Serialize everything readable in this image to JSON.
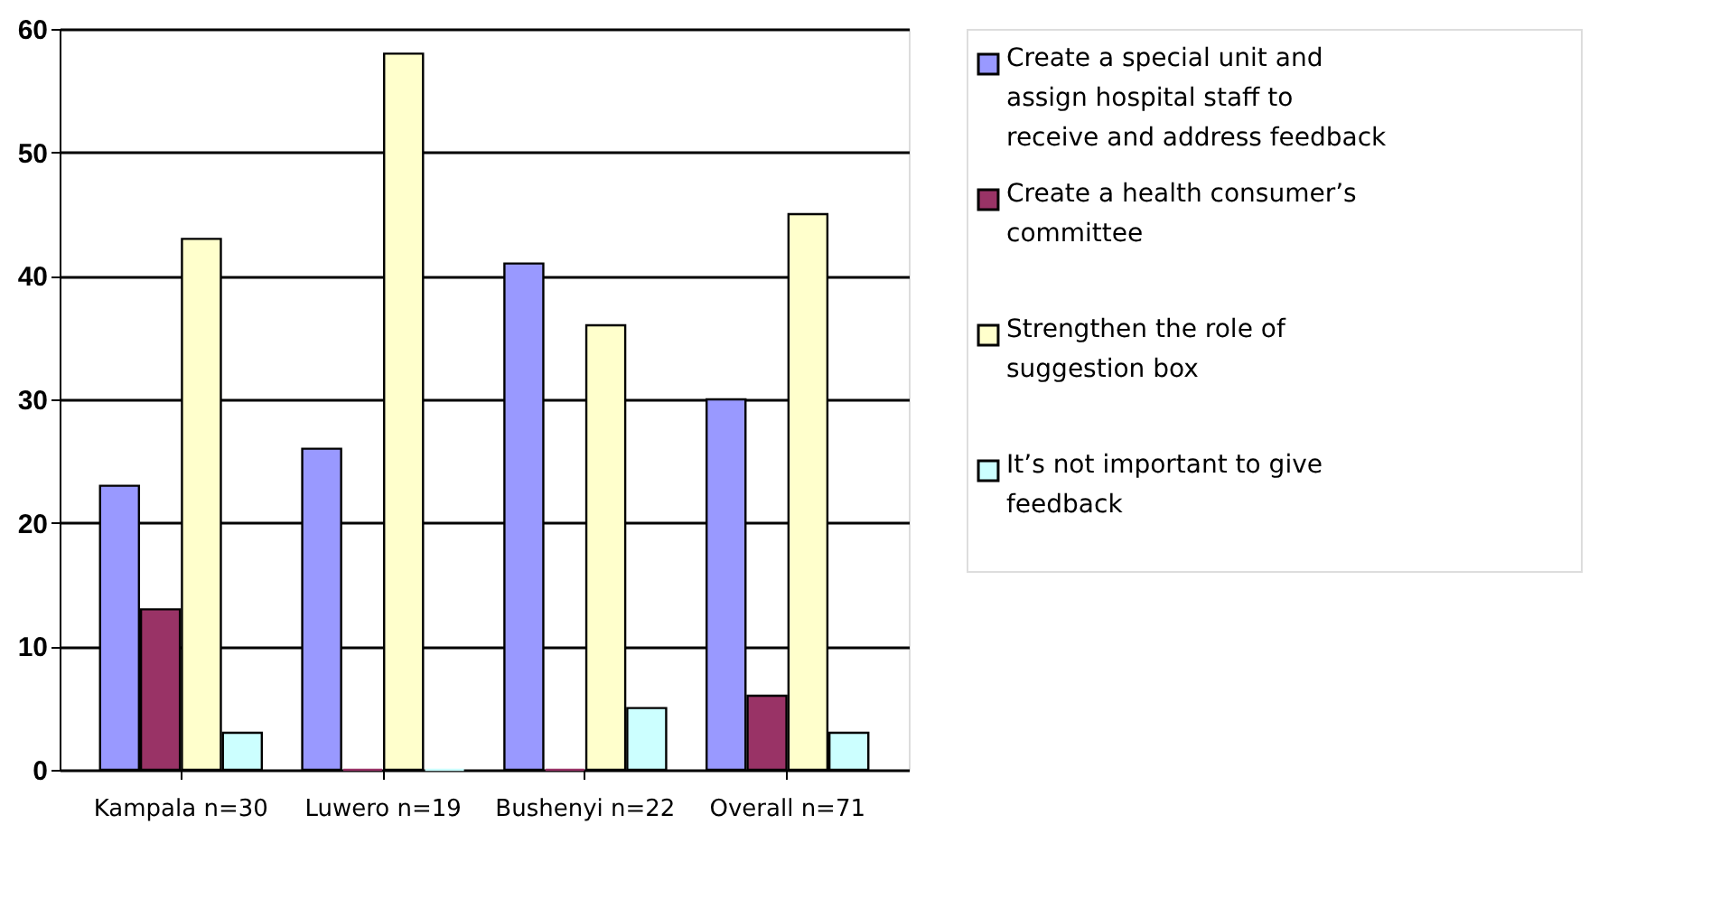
{
  "chart_data": {
    "type": "bar",
    "categories": [
      "Kampala n=30",
      "Luwero n=19",
      "Bushenyi n=22",
      "Overall n=71"
    ],
    "series": [
      {
        "name": "Create a special unit and assign hospital staff to receive and address feedback",
        "color": "#9999ff",
        "values": [
          23,
          26,
          41,
          30
        ]
      },
      {
        "name": "Create a health consumer’s committee",
        "color": "#993366",
        "values": [
          13,
          0,
          0,
          6
        ]
      },
      {
        "name": "Strengthen the role of suggestion box",
        "color": "#ffffcc",
        "values": [
          43,
          58,
          36,
          45
        ]
      },
      {
        "name": "It’s not important to give feedback",
        "color": "#ccffff",
        "values": [
          3,
          0,
          5,
          3
        ]
      }
    ],
    "ylim": [
      0,
      60
    ],
    "yticks": [
      0,
      10,
      20,
      30,
      40,
      50,
      60
    ],
    "grid": "y",
    "legend": "right"
  }
}
